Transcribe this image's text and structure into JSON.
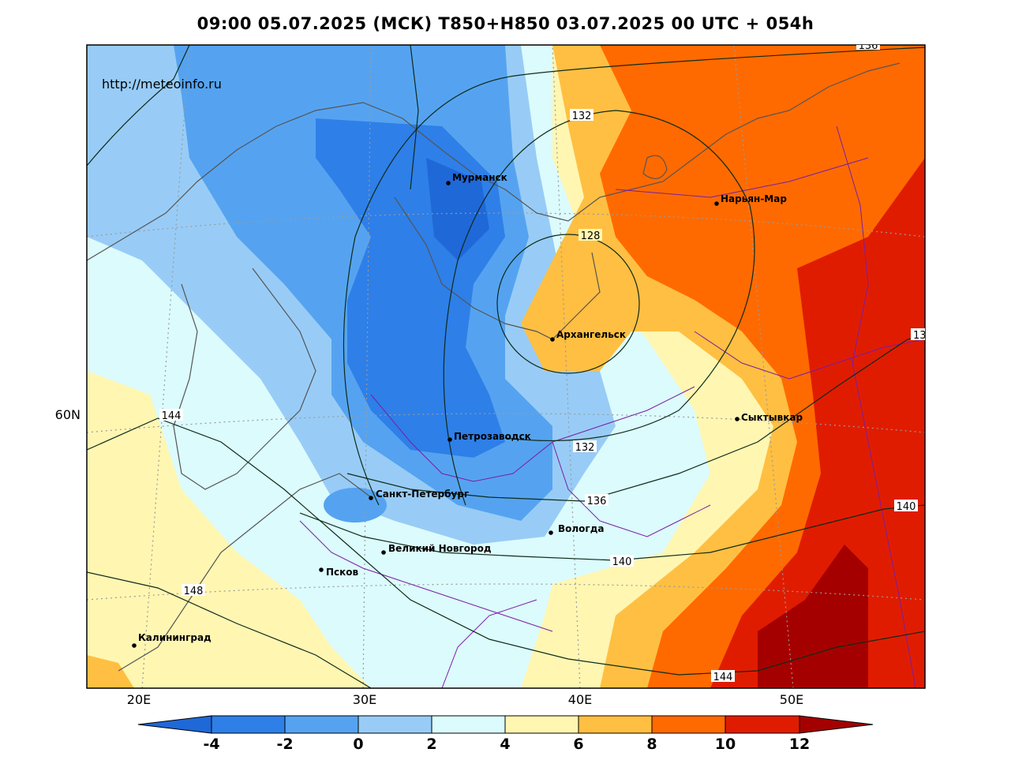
{
  "title": "09:00 05.07.2025 (МСК) T850+H850 03.07.2025 00 UTC + 054h",
  "watermark": "http://meteoinfo.ru",
  "lat_labels": [
    {
      "text": "60N",
      "lat": 60
    }
  ],
  "lon_labels": [
    {
      "text": "20E",
      "lon": 20
    },
    {
      "text": "30E",
      "lon": 30
    },
    {
      "text": "40E",
      "lon": 40
    },
    {
      "text": "50E",
      "lon": 50
    }
  ],
  "cities": [
    {
      "name": "Мурманск"
    },
    {
      "name": "Нарьян-Мар"
    },
    {
      "name": "Архангельск"
    },
    {
      "name": "Сыктывкар"
    },
    {
      "name": "Петрозаводск"
    },
    {
      "name": "Санкт-Петербург"
    },
    {
      "name": "Вологда"
    },
    {
      "name": "Великий Новгород"
    },
    {
      "name": "Псков"
    },
    {
      "name": "Калининград"
    }
  ],
  "contour_labels": [
    {
      "text": "132",
      "id": "c132a"
    },
    {
      "text": "128",
      "id": "c128"
    },
    {
      "text": "132",
      "id": "c132b"
    },
    {
      "text": "136",
      "id": "c136"
    },
    {
      "text": "140",
      "id": "c140a"
    },
    {
      "text": "140",
      "id": "c140b"
    },
    {
      "text": "144",
      "id": "c144a"
    },
    {
      "text": "144",
      "id": "c144b"
    },
    {
      "text": "148",
      "id": "c148"
    },
    {
      "text": "13",
      "id": "c13right"
    },
    {
      "text": "136",
      "id": "c136top"
    }
  ],
  "colorbar": {
    "ticks": [
      "-4",
      "-2",
      "0",
      "2",
      "4",
      "6",
      "8",
      "10",
      "12"
    ],
    "colors": [
      "#1f68d8",
      "#2e7fe8",
      "#55a3f0",
      "#98ccf6",
      "#dcfbfd",
      "#fff6b2",
      "#ffbf42",
      "#ff6a00",
      "#e01c00",
      "#a50000"
    ]
  }
}
